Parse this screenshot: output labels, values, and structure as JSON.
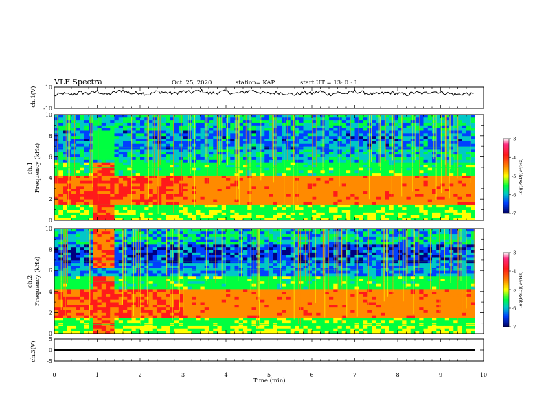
{
  "header": {
    "title": "VLF Spectra",
    "date": "Oct. 25, 2020",
    "station": "station= KAP",
    "start": "start  UT =   13: 0  : 1"
  },
  "colorbar": {
    "label": "log(PSD)(V²/Hz)",
    "ticks": [
      "-3",
      "-4",
      "-5",
      "-6",
      "-7"
    ],
    "colors": [
      "#ff2a7f",
      "#ff1a1a",
      "#ff8a00",
      "#ffff00",
      "#00ff40",
      "#00c8c8",
      "#0040ff",
      "#000080"
    ]
  },
  "chart_data": [
    {
      "type": "line",
      "panel": "ch1-waveform",
      "ylabel": "ch.1(V)",
      "ylim": [
        -10,
        10
      ],
      "yticks": [
        "10",
        "-10"
      ],
      "xlim": [
        0,
        10
      ],
      "x": [
        0,
        0.2,
        0.4,
        0.6,
        0.8,
        1.0,
        1.2,
        1.4,
        1.6,
        1.8,
        2.0,
        2.2,
        2.4,
        2.6,
        2.8,
        3.0,
        3.2,
        3.4,
        3.6,
        3.8,
        4.0,
        4.2,
        4.4,
        4.6,
        4.8,
        5.0,
        5.2,
        5.4,
        5.6,
        5.8,
        6.0,
        6.2,
        6.4,
        6.6,
        6.8,
        7.0,
        7.2,
        7.4,
        7.6,
        7.8,
        8.0,
        8.2,
        8.4,
        8.6,
        8.8,
        9.0,
        9.2,
        9.4,
        9.6,
        9.8
      ],
      "y": [
        2,
        4,
        3,
        5,
        4,
        6,
        3,
        5,
        7,
        4,
        5,
        3,
        6,
        5,
        4,
        6,
        5,
        7,
        4,
        5,
        6,
        4,
        5,
        7,
        5,
        4,
        5,
        4,
        3,
        5,
        4,
        6,
        3,
        5,
        4,
        6,
        5,
        3,
        4,
        5,
        4,
        3,
        5,
        4,
        6,
        5,
        4,
        3,
        4,
        3
      ]
    },
    {
      "type": "heatmap",
      "panel": "ch1-spectrogram",
      "ylabel_top": "ch.1",
      "ylabel": "Frequency (kHz)",
      "ylim": [
        0,
        10
      ],
      "yticks": [
        "0",
        "2",
        "4",
        "6",
        "8",
        "10"
      ],
      "xlim": [
        0,
        10
      ],
      "colorscale_range": [
        -7,
        -3
      ]
    },
    {
      "type": "heatmap",
      "panel": "ch2-spectrogram",
      "ylabel_top": "ch.2",
      "ylabel": "Frequency (kHz)",
      "ylim": [
        0,
        10
      ],
      "yticks": [
        "0",
        "2",
        "4",
        "6",
        "8",
        "10"
      ],
      "xlim": [
        0,
        10
      ],
      "colorscale_range": [
        -7,
        -3
      ]
    },
    {
      "type": "line",
      "panel": "ch3-waveform",
      "ylabel": "ch.3(V)",
      "ylim": [
        -5,
        5
      ],
      "yticks": [
        "5",
        "0",
        "-5"
      ],
      "xlim": [
        0,
        10
      ],
      "x": [
        0,
        9.8
      ],
      "y": [
        0,
        0
      ]
    }
  ],
  "xaxis": {
    "label": "Time  (min)",
    "ticks": [
      "0",
      "1",
      "2",
      "3",
      "4",
      "5",
      "6",
      "7",
      "8",
      "9",
      "10"
    ]
  }
}
